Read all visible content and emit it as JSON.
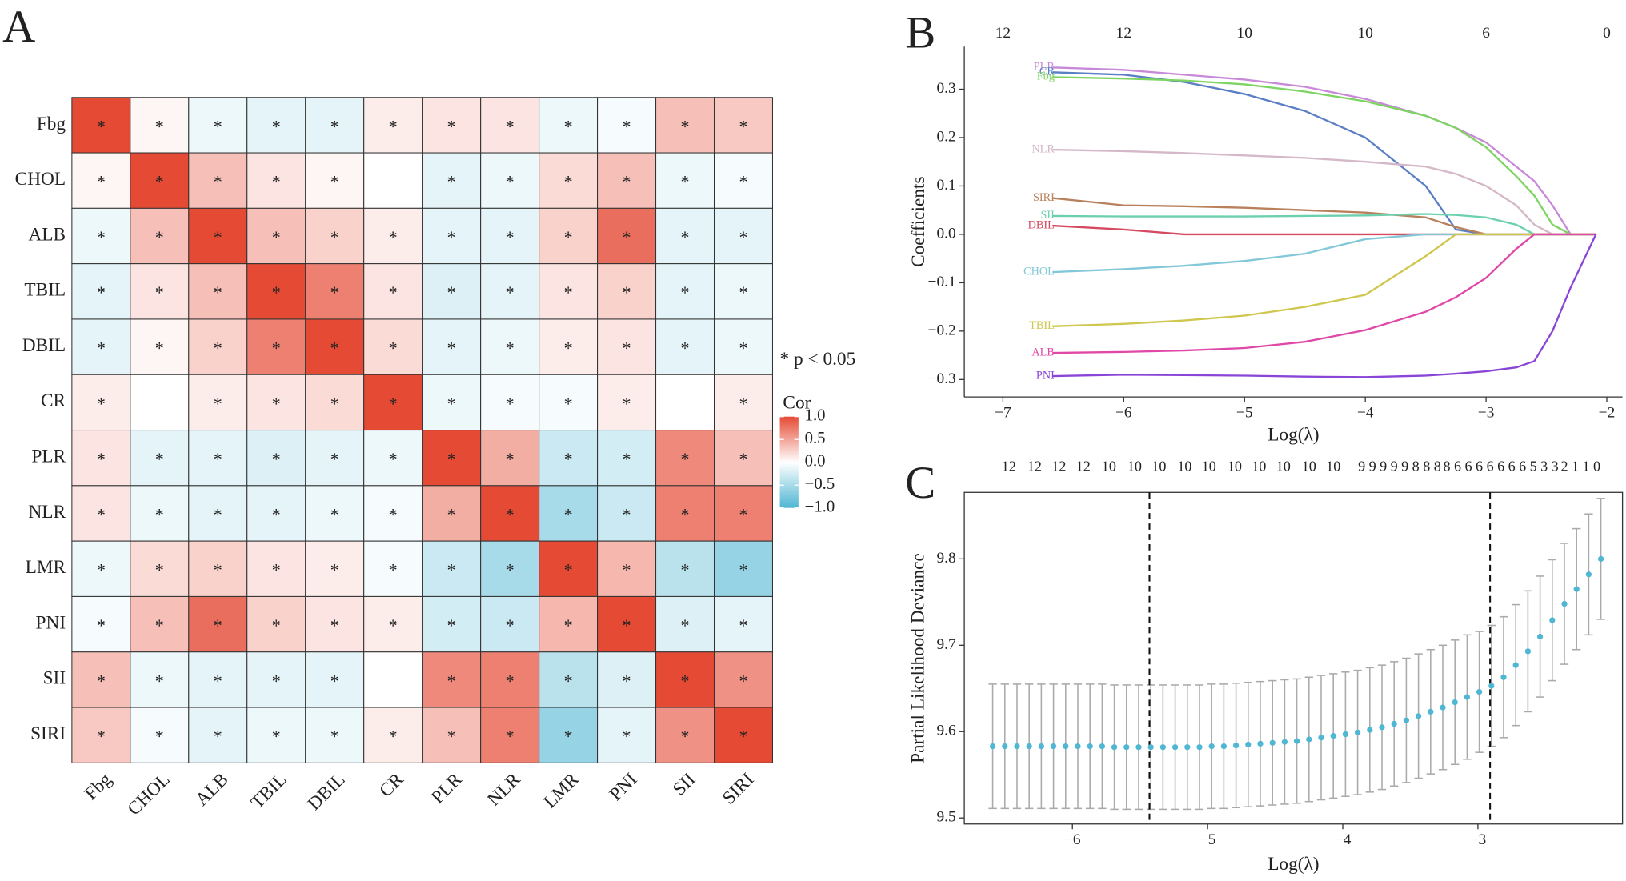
{
  "chart_data": [
    {
      "type": "heatmap",
      "panel": "A",
      "categories": [
        "Fbg",
        "CHOL",
        "ALB",
        "TBIL",
        "DBIL",
        "CR",
        "PLR",
        "NLR",
        "LMR",
        "PNI",
        "SII",
        "SIRI"
      ],
      "values": [
        [
          1,
          0.05,
          -0.1,
          -0.15,
          -0.15,
          0.1,
          0.15,
          0.15,
          -0.1,
          -0.05,
          0.35,
          0.3
        ],
        [
          0.05,
          1,
          0.35,
          0.15,
          0.05,
          0,
          -0.15,
          -0.1,
          0.2,
          0.35,
          -0.1,
          -0.05
        ],
        [
          -0.1,
          0.35,
          1,
          0.35,
          0.25,
          0.1,
          -0.15,
          -0.15,
          0.25,
          0.8,
          -0.15,
          -0.15
        ],
        [
          -0.15,
          0.15,
          0.35,
          1,
          0.7,
          0.15,
          -0.2,
          -0.15,
          0.15,
          0.25,
          -0.15,
          -0.1
        ],
        [
          -0.15,
          0.05,
          0.25,
          0.7,
          1,
          0.2,
          -0.15,
          -0.1,
          0.1,
          0.15,
          -0.15,
          -0.1
        ],
        [
          0.1,
          0,
          0.1,
          0.15,
          0.2,
          1,
          -0.1,
          -0.05,
          -0.05,
          0.1,
          0,
          0.1
        ],
        [
          0.15,
          -0.15,
          -0.15,
          -0.2,
          -0.15,
          -0.1,
          1,
          0.45,
          -0.3,
          -0.25,
          0.65,
          0.35
        ],
        [
          0.15,
          -0.1,
          -0.15,
          -0.15,
          -0.1,
          -0.05,
          0.45,
          1,
          -0.5,
          -0.3,
          0.7,
          0.7
        ],
        [
          -0.1,
          0.2,
          0.25,
          0.15,
          0.1,
          -0.05,
          -0.3,
          -0.5,
          1,
          0.4,
          -0.4,
          -0.6
        ],
        [
          -0.05,
          0.35,
          0.8,
          0.25,
          0.15,
          0.1,
          -0.25,
          -0.3,
          0.4,
          1,
          -0.2,
          -0.15
        ],
        [
          0.35,
          -0.1,
          -0.15,
          -0.15,
          -0.15,
          0,
          0.65,
          0.7,
          -0.4,
          -0.2,
          1,
          0.6
        ],
        [
          0.3,
          -0.05,
          -0.15,
          -0.1,
          -0.1,
          0.1,
          0.35,
          0.7,
          -0.6,
          -0.15,
          0.6,
          1
        ]
      ],
      "significant": [
        [
          true,
          true,
          true,
          true,
          true,
          true,
          true,
          true,
          true,
          true,
          true,
          true
        ],
        [
          true,
          true,
          true,
          true,
          true,
          false,
          true,
          true,
          true,
          true,
          true,
          true
        ],
        [
          true,
          true,
          true,
          true,
          true,
          true,
          true,
          true,
          true,
          true,
          true,
          true
        ],
        [
          true,
          true,
          true,
          true,
          true,
          true,
          true,
          true,
          true,
          true,
          true,
          true
        ],
        [
          true,
          true,
          true,
          true,
          true,
          true,
          true,
          true,
          true,
          true,
          true,
          true
        ],
        [
          true,
          false,
          true,
          true,
          true,
          true,
          true,
          true,
          true,
          true,
          false,
          true
        ],
        [
          true,
          true,
          true,
          true,
          true,
          true,
          true,
          true,
          true,
          true,
          true,
          true
        ],
        [
          true,
          true,
          true,
          true,
          true,
          true,
          true,
          true,
          true,
          true,
          true,
          true
        ],
        [
          true,
          true,
          true,
          true,
          true,
          true,
          true,
          true,
          true,
          true,
          true,
          true
        ],
        [
          true,
          true,
          true,
          true,
          true,
          true,
          true,
          true,
          true,
          true,
          true,
          true
        ],
        [
          true,
          true,
          true,
          true,
          true,
          false,
          true,
          true,
          true,
          true,
          true,
          true
        ],
        [
          true,
          true,
          true,
          true,
          true,
          true,
          true,
          true,
          true,
          true,
          true,
          true
        ]
      ],
      "sig_label": "*",
      "annotation": "* p < 0.05",
      "legend_title": "Cor",
      "clim": [
        -1,
        1
      ],
      "colorbar_ticks": [
        {
          "value": 1,
          "label": "1.0"
        },
        0.5,
        {
          "value": 0,
          "label": "0.0"
        },
        {
          "value": -0.5,
          "label": "−0.5"
        },
        {
          "value": -1,
          "label": "−1.0"
        }
      ],
      "colors": {
        "low": "#4fb6d3",
        "mid": "#ffffff",
        "high": "#e54a34"
      }
    },
    {
      "type": "line",
      "panel": "B",
      "x_label": "Log(λ)",
      "y_label": "Coefficients",
      "xlim": [
        -7.32,
        -1.87
      ],
      "ylim": [
        -0.336,
        0.388
      ],
      "xticks": [
        {
          "value": -7,
          "label": "−7"
        },
        {
          "value": -6,
          "label": "−6"
        },
        {
          "value": -5,
          "label": "−5"
        },
        {
          "value": -4,
          "label": "−4"
        },
        {
          "value": -3,
          "label": "−3"
        },
        {
          "value": -2,
          "label": "−2"
        }
      ],
      "x2ticks": [
        {
          "value": -7,
          "label": "12"
        },
        {
          "value": -6,
          "label": "12"
        },
        {
          "value": -5,
          "label": "10"
        },
        {
          "value": -4,
          "label": "10"
        },
        {
          "value": -3,
          "label": "6"
        },
        {
          "value": -2,
          "label": "0"
        }
      ],
      "yticks": [
        0.3,
        0.2,
        0.1,
        {
          "value": 0,
          "label": "0.0"
        },
        {
          "value": -0.1,
          "label": "−0.1"
        },
        {
          "value": -0.2,
          "label": "−0.2"
        },
        {
          "value": -0.3,
          "label": "−0.3"
        }
      ],
      "x": [
        -6.59,
        -6,
        -5.5,
        -5,
        -4.5,
        -4,
        -3.5,
        -3.25,
        -3,
        -2.75,
        -2.6,
        -2.45,
        -2.3,
        -2.09
      ],
      "series": [
        {
          "name": "PLR",
          "color": "#c88ad8",
          "values": [
            0.345,
            0.34,
            0.33,
            0.32,
            0.305,
            0.28,
            0.245,
            0.22,
            0.19,
            0.14,
            0.11,
            0.06,
            0,
            0
          ]
        },
        {
          "name": "CR",
          "color": "#5b7fc4",
          "values": [
            0.335,
            0.33,
            0.315,
            0.29,
            0.255,
            0.2,
            0.1,
            0.01,
            0,
            0,
            0,
            0,
            0,
            0
          ]
        },
        {
          "name": "Fbg",
          "color": "#7ed462",
          "values": [
            0.325,
            0.322,
            0.318,
            0.31,
            0.295,
            0.275,
            0.245,
            0.22,
            0.18,
            0.12,
            0.08,
            0.02,
            0,
            0
          ]
        },
        {
          "name": "NLR",
          "color": "#d4b8c8",
          "values": [
            0.175,
            0.172,
            0.168,
            0.163,
            0.158,
            0.15,
            0.14,
            0.125,
            0.1,
            0.06,
            0.02,
            0,
            0,
            0
          ]
        },
        {
          "name": "SIRI",
          "color": "#b9805c",
          "values": [
            0.075,
            0.06,
            0.058,
            0.055,
            0.05,
            0.045,
            0.035,
            0.015,
            0,
            0,
            0,
            0,
            0,
            0
          ]
        },
        {
          "name": "SII",
          "color": "#6cd0ae",
          "values": [
            0.038,
            0.037,
            0.037,
            0.037,
            0.038,
            0.039,
            0.042,
            0.04,
            0.035,
            0.02,
            0,
            0,
            0,
            0
          ]
        },
        {
          "name": "DBIL",
          "color": "#d44a60",
          "values": [
            0.018,
            0.01,
            0,
            0,
            0,
            0,
            0,
            0,
            0,
            0,
            0,
            0,
            0,
            0
          ]
        },
        {
          "name": "CHOL",
          "color": "#82c8d8",
          "values": [
            -0.078,
            -0.072,
            -0.065,
            -0.055,
            -0.04,
            -0.01,
            0,
            0,
            0,
            0,
            0,
            0,
            0,
            0
          ]
        },
        {
          "name": "TBIL",
          "color": "#cfc74e",
          "values": [
            -0.19,
            -0.185,
            -0.178,
            -0.168,
            -0.15,
            -0.125,
            -0.045,
            0,
            0,
            0,
            0,
            0,
            0,
            0
          ]
        },
        {
          "name": "ALB",
          "color": "#e048a8",
          "values": [
            -0.245,
            -0.243,
            -0.24,
            -0.235,
            -0.222,
            -0.198,
            -0.16,
            -0.13,
            -0.09,
            -0.03,
            0,
            0,
            0,
            0
          ]
        },
        {
          "name": "PNI",
          "color": "#8a45d6",
          "values": [
            -0.293,
            -0.29,
            -0.291,
            -0.292,
            -0.294,
            -0.295,
            -0.292,
            -0.288,
            -0.283,
            -0.275,
            -0.262,
            -0.2,
            -0.11,
            0
          ]
        }
      ]
    },
    {
      "type": "errorbar",
      "panel": "C",
      "x_label": "Log(λ)",
      "y_label": "Partial Likelihood Deviance",
      "xlim": [
        -6.8,
        -1.93
      ],
      "ylim": [
        9.493,
        9.877
      ],
      "xticks": [
        {
          "value": -6,
          "label": "−6"
        },
        {
          "value": -5,
          "label": "−5"
        },
        {
          "value": -4,
          "label": "−4"
        },
        {
          "value": -3,
          "label": "−3"
        }
      ],
      "yticks": [
        9.5,
        9.6,
        9.7,
        9.8
      ],
      "x2ticks": [
        {
          "value": -6.47,
          "label": "12"
        },
        {
          "value": -6.28,
          "label": "12"
        },
        {
          "value": -6.1,
          "label": "12"
        },
        {
          "value": -5.92,
          "label": "12"
        },
        {
          "value": -5.73,
          "label": "10"
        },
        {
          "value": -5.54,
          "label": "10"
        },
        {
          "value": -5.36,
          "label": "10"
        },
        {
          "value": -5.17,
          "label": "10"
        },
        {
          "value": -4.99,
          "label": "10"
        },
        {
          "value": -4.8,
          "label": "10"
        },
        {
          "value": -4.62,
          "label": "10"
        },
        {
          "value": -4.44,
          "label": "10"
        },
        {
          "value": -4.25,
          "label": "10"
        },
        {
          "value": -4.07,
          "label": "10"
        },
        {
          "value": -3.86,
          "label": "9"
        },
        {
          "value": -3.78,
          "label": "9"
        },
        {
          "value": -3.7,
          "label": "9"
        },
        {
          "value": -3.62,
          "label": "9"
        },
        {
          "value": -3.54,
          "label": "9"
        },
        {
          "value": -3.46,
          "label": "8"
        },
        {
          "value": -3.38,
          "label": "8"
        },
        {
          "value": -3.3,
          "label": "8"
        },
        {
          "value": -3.23,
          "label": "8"
        },
        {
          "value": -3.15,
          "label": "6"
        },
        {
          "value": -3.07,
          "label": "6"
        },
        {
          "value": -2.99,
          "label": "6"
        },
        {
          "value": -2.91,
          "label": "6"
        },
        {
          "value": -2.83,
          "label": "6"
        },
        {
          "value": -2.75,
          "label": "6"
        },
        {
          "value": -2.67,
          "label": "6"
        },
        {
          "value": -2.59,
          "label": "5"
        },
        {
          "value": -2.51,
          "label": "3"
        },
        {
          "value": -2.43,
          "label": "3"
        },
        {
          "value": -2.36,
          "label": "2"
        },
        {
          "value": -2.28,
          "label": "1"
        },
        {
          "value": -2.2,
          "label": "1"
        },
        {
          "value": -2.12,
          "label": "0"
        }
      ],
      "vlines": [
        -5.43,
        -2.91
      ],
      "color": "#4fb6d3",
      "error_color": "#aaaaaa",
      "x": [
        -6.59,
        -6.5,
        -6.41,
        -6.32,
        -6.23,
        -6.14,
        -6.05,
        -5.96,
        -5.87,
        -5.78,
        -5.69,
        -5.6,
        -5.51,
        -5.42,
        -5.33,
        -5.24,
        -5.15,
        -5.06,
        -4.97,
        -4.88,
        -4.79,
        -4.7,
        -4.61,
        -4.52,
        -4.43,
        -4.34,
        -4.25,
        -4.16,
        -4.07,
        -3.98,
        -3.89,
        -3.8,
        -3.71,
        -3.62,
        -3.53,
        -3.44,
        -3.35,
        -3.26,
        -3.17,
        -3.08,
        -2.99,
        -2.9,
        -2.81,
        -2.72,
        -2.63,
        -2.54,
        -2.45,
        -2.36,
        -2.27,
        -2.18,
        -2.09
      ],
      "values": [
        9.583,
        9.583,
        9.583,
        9.583,
        9.583,
        9.583,
        9.583,
        9.583,
        9.583,
        9.583,
        9.582,
        9.582,
        9.582,
        9.582,
        9.582,
        9.582,
        9.582,
        9.582,
        9.583,
        9.583,
        9.584,
        9.585,
        9.586,
        9.587,
        9.588,
        9.589,
        9.591,
        9.593,
        9.595,
        9.597,
        9.599,
        9.602,
        9.605,
        9.609,
        9.613,
        9.618,
        9.623,
        9.628,
        9.634,
        9.64,
        9.646,
        9.653,
        9.663,
        9.677,
        9.693,
        9.71,
        9.729,
        9.748,
        9.765,
        9.782,
        9.8
      ],
      "errors": [
        0.072,
        0.072,
        0.072,
        0.072,
        0.072,
        0.072,
        0.072,
        0.072,
        0.072,
        0.072,
        0.072,
        0.072,
        0.072,
        0.072,
        0.072,
        0.072,
        0.072,
        0.072,
        0.072,
        0.072,
        0.072,
        0.072,
        0.072,
        0.072,
        0.072,
        0.072,
        0.072,
        0.072,
        0.072,
        0.072,
        0.072,
        0.072,
        0.072,
        0.072,
        0.072,
        0.072,
        0.072,
        0.072,
        0.072,
        0.072,
        0.07,
        0.07,
        0.07,
        0.07,
        0.07,
        0.07,
        0.07,
        0.07,
        0.07,
        0.07,
        0.07
      ]
    }
  ]
}
